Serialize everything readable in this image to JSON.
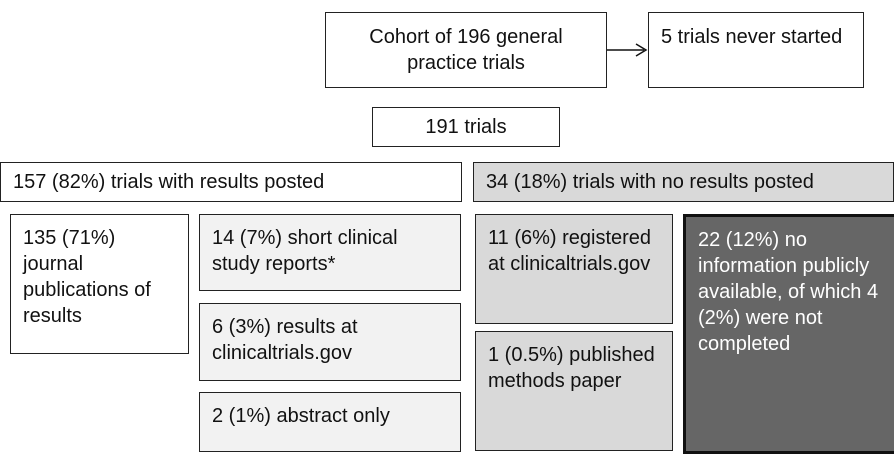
{
  "nodes": [
    {
      "label": "Cohort of 196 general practice trials"
    },
    {
      "label": "5 trials never started"
    },
    {
      "label": "191 trials"
    },
    {
      "label": "157 (82%) trials with results posted"
    },
    {
      "label": "34 (18%) trials with no results posted"
    },
    {
      "label": "135 (71%) journal publications of results"
    },
    {
      "label": "14 (7%) short clinical study reports*"
    },
    {
      "label": "6 (3%) results at clinicaltrials.gov"
    },
    {
      "label": "2 (1%) abstract only"
    },
    {
      "label": "11 (6%) registered at clinicaltrials.gov"
    },
    {
      "label": "1 (0.5%) published methods paper"
    },
    {
      "label": "22 (12%) no information publicly available, of which 4 (2%) were not completed"
    }
  ]
}
